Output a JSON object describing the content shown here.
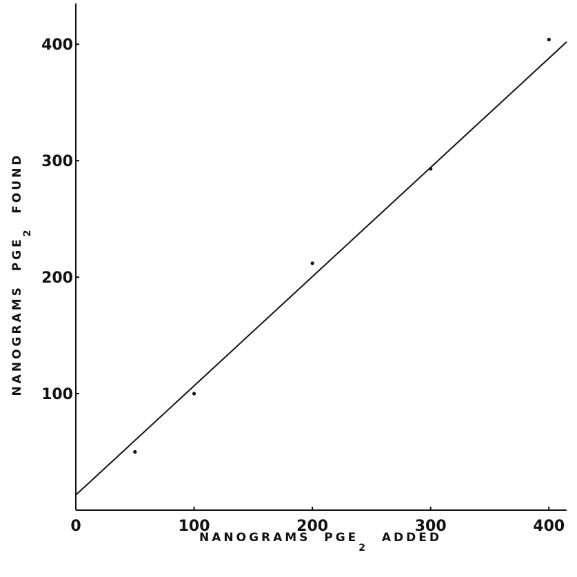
{
  "chart_data": {
    "type": "scatter",
    "title": "",
    "x_axis": {
      "label_parts": [
        "NANOGRAMS  PGE",
        "2",
        "  ADDED"
      ],
      "range": [
        0,
        415
      ],
      "ticks": [
        0,
        100,
        200,
        300,
        400
      ],
      "tick_labels": [
        "0",
        "100",
        "200",
        "300",
        "400"
      ]
    },
    "y_axis": {
      "label_parts": [
        "NANOGRAMS  PGE",
        "2",
        "  FOUND"
      ],
      "range": [
        0,
        435
      ],
      "ticks": [
        100,
        200,
        300,
        400
      ],
      "tick_labels": [
        "100",
        "200",
        "300",
        "400"
      ]
    },
    "series": [
      {
        "type": "scatter",
        "points": [
          {
            "x": 50,
            "y": 50
          },
          {
            "x": 100,
            "y": 100
          },
          {
            "x": 200,
            "y": 212
          },
          {
            "x": 300,
            "y": 293
          },
          {
            "x": 400,
            "y": 404
          }
        ]
      },
      {
        "type": "line",
        "points": [
          {
            "x": 0,
            "y": 13
          },
          {
            "x": 415,
            "y": 402
          }
        ]
      }
    ],
    "grid": false,
    "legend": "none"
  }
}
